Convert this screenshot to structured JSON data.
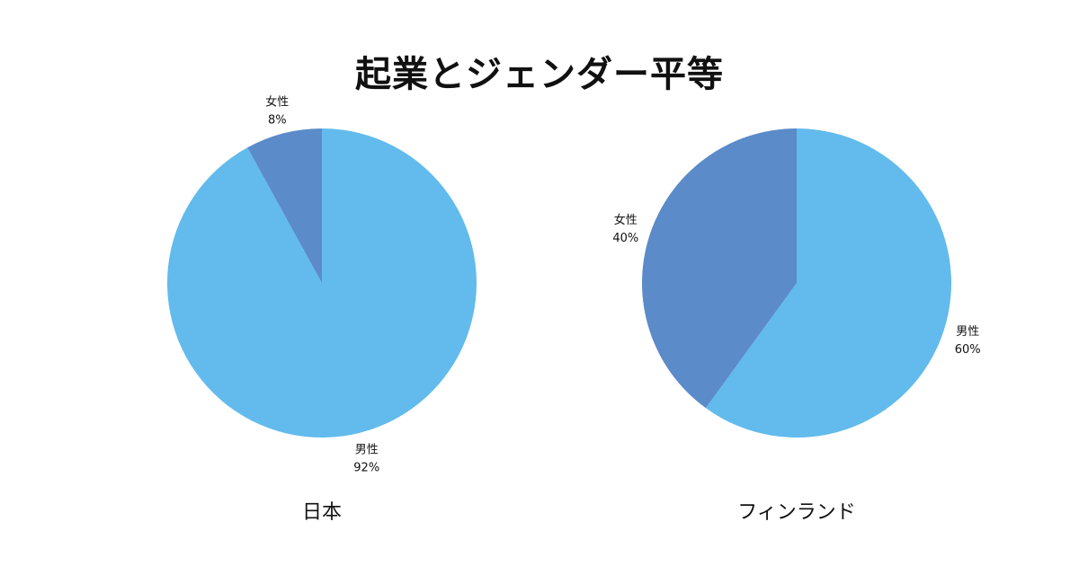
{
  "title": "起業とジェンダー平等",
  "chart_data": [
    {
      "type": "pie",
      "name": "日本",
      "slices": [
        {
          "label": "男性",
          "value": 92,
          "value_label": "92%",
          "color": "#62bbec"
        },
        {
          "label": "女性",
          "value": 8,
          "value_label": "8%",
          "color": "#5b8bc9"
        }
      ]
    },
    {
      "type": "pie",
      "name": "フィンランド",
      "slices": [
        {
          "label": "男性",
          "value": 60,
          "value_label": "60%",
          "color": "#62bbec"
        },
        {
          "label": "女性",
          "value": 40,
          "value_label": "40%",
          "color": "#5b8bc9"
        }
      ]
    }
  ]
}
